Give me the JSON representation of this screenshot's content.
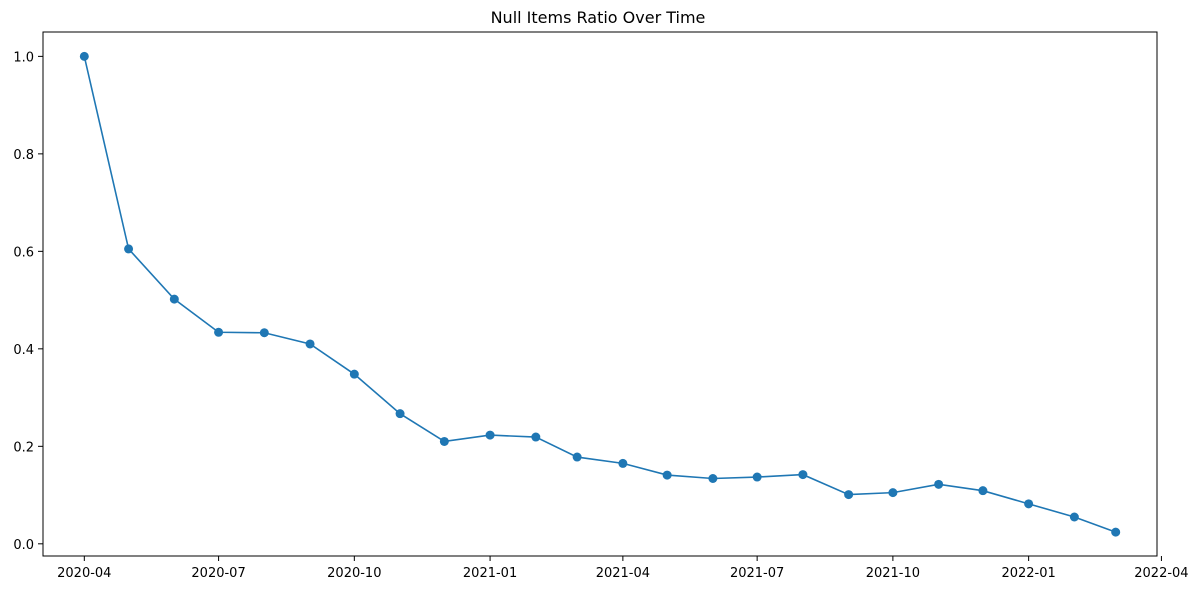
{
  "chart_data": {
    "type": "line",
    "title": "Null Items Ratio Over Time",
    "xlabel": "",
    "ylabel": "",
    "ylim": [
      -0.025,
      1.05
    ],
    "xlim": [
      "2020-03-04",
      "2022-03-29"
    ],
    "grid": false,
    "marker": "circle",
    "color": "#1f77b4",
    "x_ticks": [
      "2020-04",
      "2020-07",
      "2020-10",
      "2021-01",
      "2021-04",
      "2021-07",
      "2021-10",
      "2022-01",
      "2022-04"
    ],
    "y_ticks": [
      "0.0",
      "0.2",
      "0.4",
      "0.6",
      "0.8",
      "1.0"
    ],
    "series": [
      {
        "x": [
          "2020-04-01",
          "2020-05-01",
          "2020-06-01",
          "2020-07-01",
          "2020-08-01",
          "2020-09-01",
          "2020-10-01",
          "2020-11-01",
          "2020-12-01",
          "2021-01-01",
          "2021-02-01",
          "2021-03-01",
          "2021-04-01",
          "2021-05-01",
          "2021-06-01",
          "2021-07-01",
          "2021-08-01",
          "2021-09-01",
          "2021-10-01",
          "2021-11-01",
          "2021-12-01",
          "2022-01-01",
          "2022-02-01",
          "2022-03-01"
        ],
        "values": [
          1.0,
          0.605,
          0.502,
          0.434,
          0.433,
          0.41,
          0.348,
          0.267,
          0.21,
          0.223,
          0.219,
          0.178,
          0.165,
          0.141,
          0.134,
          0.137,
          0.142,
          0.101,
          0.105,
          0.122,
          0.109,
          0.082,
          0.055,
          0.024
        ]
      }
    ]
  }
}
